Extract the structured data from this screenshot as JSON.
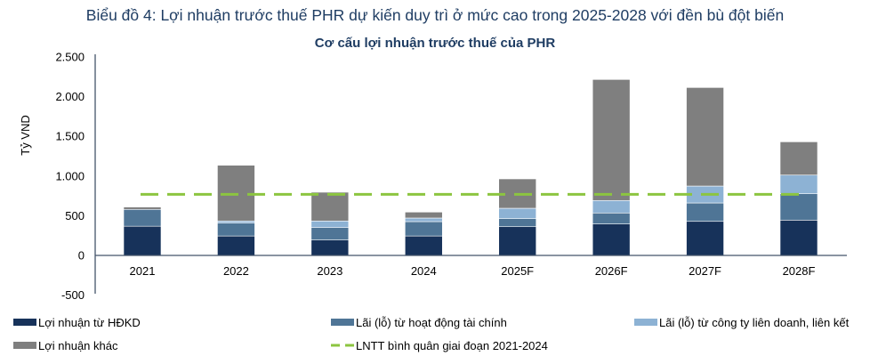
{
  "chart_data": {
    "type": "bar",
    "stacked": true,
    "title": "Biểu đồ 4: Lợi nhuận trước thuế PHR dự kiến duy trì ở mức cao trong 2025-2028 với đền bù đột biến",
    "subtitle": "Cơ cấu lợi nhuận trước thuế của PHR",
    "xlabel": "",
    "ylabel": "Tỷ VND",
    "ylim": [
      -500,
      2500
    ],
    "yticks": [
      -500,
      0,
      500,
      1000,
      1500,
      2000,
      2500
    ],
    "ytick_labels": [
      "-500",
      "0",
      "500",
      "1.000",
      "1.500",
      "2.000",
      "2.500"
    ],
    "grid": false,
    "legend_position": "bottom",
    "categories": [
      "2021",
      "2022",
      "2023",
      "2024",
      "2025F",
      "2026F",
      "2027F",
      "2028F"
    ],
    "series": [
      {
        "name": "Lợi nhuận từ HĐKD",
        "color": "#17325a",
        "values": [
          368,
          245,
          194,
          245,
          362,
          396,
          429,
          445
        ]
      },
      {
        "name": "Lãi (lỗ) từ hoạt động tài chính",
        "color": "#4f7596",
        "values": [
          212,
          162,
          157,
          181,
          101,
          139,
          232,
          332
        ]
      },
      {
        "name": "Lãi (lỗ) từ công ty liên doanh, liên kết",
        "color": "#8db2d4",
        "values": [
          0,
          27,
          83,
          45,
          131,
          157,
          213,
          235
        ]
      },
      {
        "name": "Lợi nhuận khác",
        "color": "#7f7f7f",
        "values": [
          30,
          702,
          362,
          75,
          370,
          1524,
          1241,
          419
        ]
      }
    ],
    "reference_line": {
      "name": "LNTT bình quân giai đoạn 2021-2024",
      "color": "#8cc540",
      "value": 770
    }
  }
}
